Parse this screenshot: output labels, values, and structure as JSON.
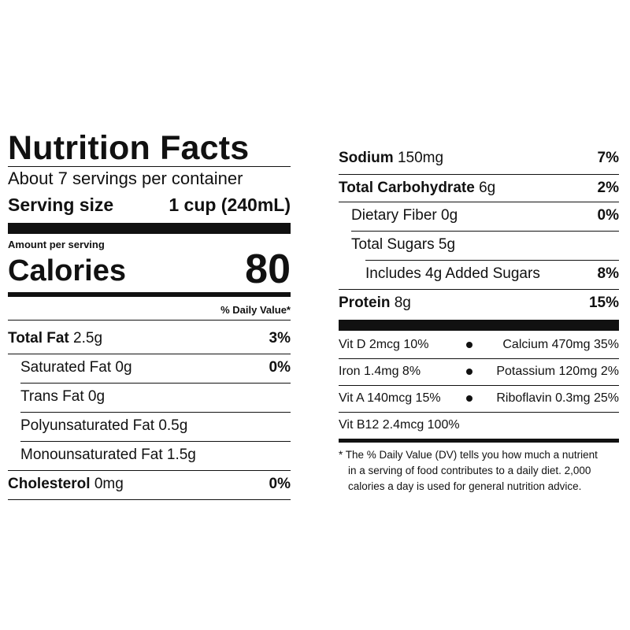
{
  "header": {
    "title": "Nutrition Facts",
    "servings_per_container": "About 7 servings per container",
    "serving_size_label": "Serving size",
    "serving_size_value": "1 cup (240mL)"
  },
  "calories": {
    "amount_per_serving": "Amount per serving",
    "label": "Calories",
    "value": "80"
  },
  "daily_value_header": "% Daily Value*",
  "nutrients_left": [
    {
      "name": "Total Fat",
      "amount": "2.5g",
      "dv": "3%"
    },
    {
      "name": "Saturated Fat 0g",
      "dv": "0%"
    },
    {
      "name": "Trans Fat 0g"
    },
    {
      "name": "Polyunsaturated Fat 0.5g"
    },
    {
      "name": "Monounsaturated Fat 1.5g"
    },
    {
      "name": "Cholesterol",
      "amount": "0mg",
      "dv": "0%"
    }
  ],
  "nutrients_right": [
    {
      "name": "Sodium",
      "amount": "150mg",
      "dv": "7%"
    },
    {
      "name": "Total Carbohydrate",
      "amount": "6g",
      "dv": "2%"
    },
    {
      "name": "Dietary Fiber 0g",
      "dv": "0%"
    },
    {
      "name": "Total Sugars 5g"
    },
    {
      "name": "Includes 4g Added Sugars",
      "dv": "8%"
    },
    {
      "name": "Protein",
      "amount": "8g",
      "dv": "15%"
    }
  ],
  "vitamins": [
    {
      "left": "Vit D 2mcg 10%",
      "right": "Calcium 470mg 35%"
    },
    {
      "left": "Iron 1.4mg 8%",
      "right": "Potassium 120mg 2%"
    },
    {
      "left": "Vit A 140mcg 15%",
      "right": "Riboflavin 0.3mg 25%"
    },
    {
      "left": "Vit B12 2.4mcg 100%"
    }
  ],
  "footnote": {
    "line1": "* The % Daily Value (DV) tells you how much a nutrient",
    "line2": "in a serving of food contributes to a daily diet. 2,000",
    "line3": "calories a day is used for general nutrition advice."
  }
}
